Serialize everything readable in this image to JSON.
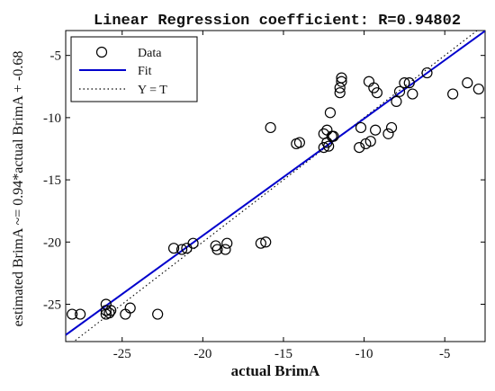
{
  "chart_data": {
    "type": "scatter",
    "title": "Linear Regression coefficient: R=0.94802",
    "xlabel": "actual BrimA",
    "ylabel": "estimated BrimA ~= 0.94*actual BrimA + -0.68",
    "xlim": [
      -28.5,
      -2.5
    ],
    "ylim": [
      -28,
      -3
    ],
    "xticks": [
      -25,
      -20,
      -15,
      -10,
      -5
    ],
    "yticks": [
      -25,
      -20,
      -15,
      -10,
      -5
    ],
    "xtick_labels": [
      "-25",
      "-20",
      "-15",
      "-10",
      "-5"
    ],
    "ytick_labels": [
      "-25",
      "-20",
      "-15",
      "-10",
      "-5"
    ],
    "grid": false,
    "legend_position": "top-left",
    "legend": [
      {
        "label": "Data",
        "style": "circle-marker",
        "color": "#000000"
      },
      {
        "label": "Fit",
        "style": "solid-line",
        "color": "#0000cc"
      },
      {
        "label": "Y = T",
        "style": "dotted-line",
        "color": "#000000"
      }
    ],
    "fit": {
      "slope": 0.94,
      "intercept": -0.68
    },
    "points": [
      {
        "x": -28.1,
        "y": -25.8
      },
      {
        "x": -27.6,
        "y": -25.8
      },
      {
        "x": -26.0,
        "y": -25.0
      },
      {
        "x": -26.0,
        "y": -25.5
      },
      {
        "x": -25.8,
        "y": -25.7
      },
      {
        "x": -26.0,
        "y": -25.8
      },
      {
        "x": -25.7,
        "y": -25.5
      },
      {
        "x": -24.8,
        "y": -25.8
      },
      {
        "x": -24.5,
        "y": -25.3
      },
      {
        "x": -22.8,
        "y": -25.8
      },
      {
        "x": -21.8,
        "y": -20.5
      },
      {
        "x": -21.3,
        "y": -20.6
      },
      {
        "x": -21.0,
        "y": -20.5
      },
      {
        "x": -20.6,
        "y": -20.1
      },
      {
        "x": -19.2,
        "y": -20.3
      },
      {
        "x": -19.1,
        "y": -20.6
      },
      {
        "x": -18.6,
        "y": -20.6
      },
      {
        "x": -18.5,
        "y": -20.1
      },
      {
        "x": -16.4,
        "y": -20.1
      },
      {
        "x": -16.1,
        "y": -20.0
      },
      {
        "x": -15.8,
        "y": -10.8
      },
      {
        "x": -14.2,
        "y": -12.1
      },
      {
        "x": -14.0,
        "y": -12.0
      },
      {
        "x": -12.5,
        "y": -12.4
      },
      {
        "x": -12.3,
        "y": -11.0
      },
      {
        "x": -12.5,
        "y": -11.3
      },
      {
        "x": -12.3,
        "y": -12.0
      },
      {
        "x": -12.0,
        "y": -11.5
      },
      {
        "x": -12.2,
        "y": -12.3
      },
      {
        "x": -12.1,
        "y": -9.6
      },
      {
        "x": -11.9,
        "y": -11.5
      },
      {
        "x": -11.5,
        "y": -7.6
      },
      {
        "x": -11.4,
        "y": -7.1
      },
      {
        "x": -11.4,
        "y": -6.8
      },
      {
        "x": -11.5,
        "y": -8.0
      },
      {
        "x": -10.2,
        "y": -10.8
      },
      {
        "x": -10.3,
        "y": -12.4
      },
      {
        "x": -9.9,
        "y": -12.1
      },
      {
        "x": -9.6,
        "y": -11.9
      },
      {
        "x": -9.3,
        "y": -11.0
      },
      {
        "x": -9.7,
        "y": -7.1
      },
      {
        "x": -9.4,
        "y": -7.6
      },
      {
        "x": -9.2,
        "y": -8.0
      },
      {
        "x": -8.5,
        "y": -11.3
      },
      {
        "x": -8.3,
        "y": -10.8
      },
      {
        "x": -8.0,
        "y": -8.7
      },
      {
        "x": -7.8,
        "y": -7.9
      },
      {
        "x": -7.5,
        "y": -7.2
      },
      {
        "x": -7.2,
        "y": -7.2
      },
      {
        "x": -7.0,
        "y": -8.1
      },
      {
        "x": -6.1,
        "y": -6.4
      },
      {
        "x": -4.5,
        "y": -8.1
      },
      {
        "x": -3.6,
        "y": -7.2
      },
      {
        "x": -2.9,
        "y": -7.7
      }
    ]
  }
}
